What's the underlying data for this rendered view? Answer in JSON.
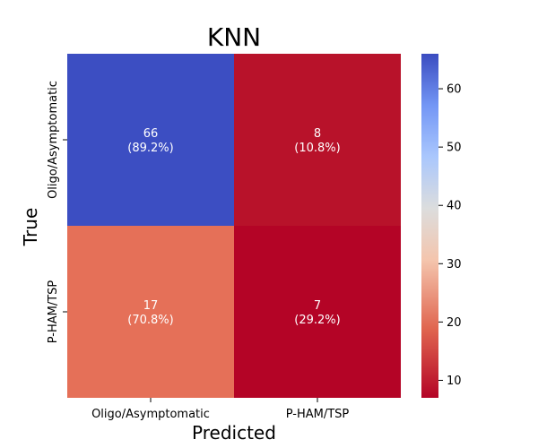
{
  "chart_data": {
    "type": "heatmap",
    "title": "KNN",
    "xlabel": "Predicted",
    "ylabel": "True",
    "x_categories": [
      "Oligo/Asymptomatic",
      "P-HAM/TSP"
    ],
    "y_categories": [
      "Oligo/Asymptomatic",
      "P-HAM/TSP"
    ],
    "values": [
      [
        66,
        8
      ],
      [
        17,
        7
      ]
    ],
    "percent_labels": [
      [
        "(89.2%)",
        "(10.8%)"
      ],
      [
        "(70.8%)",
        "(29.2%)"
      ]
    ],
    "colormap": "coolwarm_r",
    "colorbar": {
      "min": 7,
      "max": 66,
      "ticks": [
        10,
        20,
        30,
        40,
        50,
        60
      ]
    },
    "cell_colors": [
      [
        "#3c4ec2",
        "#b8122a"
      ],
      [
        "#e57058",
        "#b40426"
      ]
    ]
  }
}
